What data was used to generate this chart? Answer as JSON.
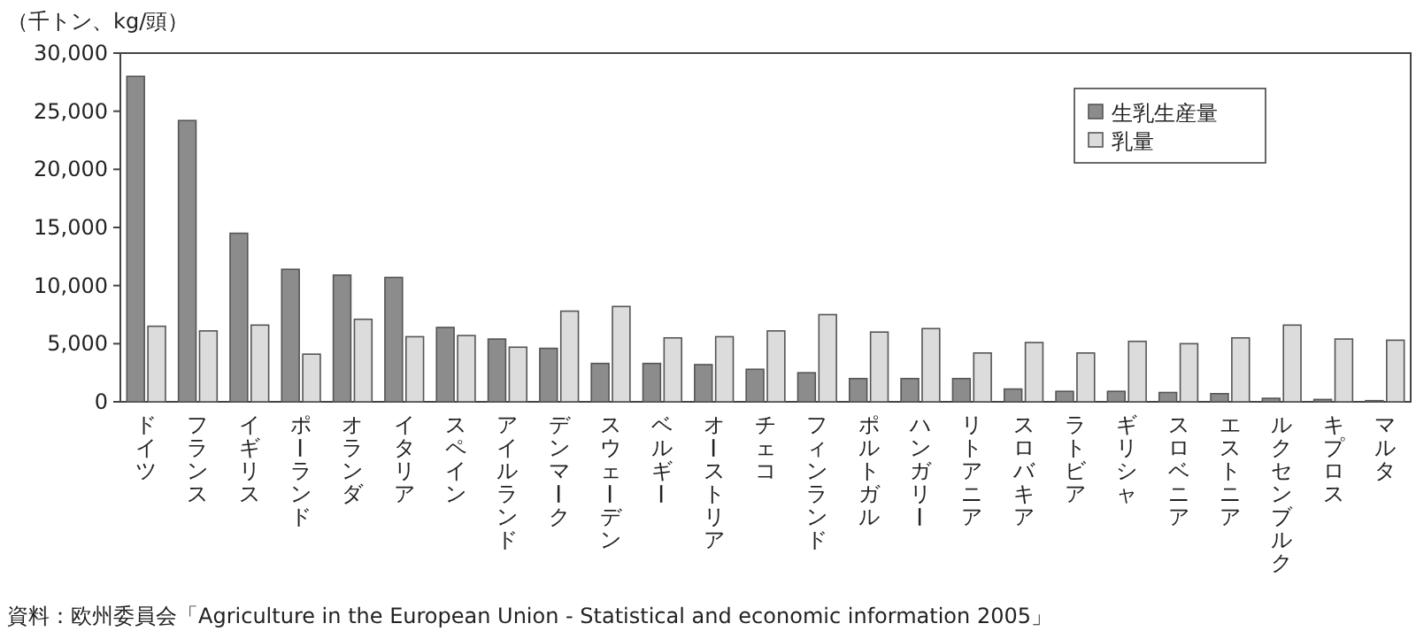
{
  "chart_data": {
    "type": "bar",
    "ylabel": "（千トン、kg/頭）",
    "categories": [
      "ドイツ",
      "フランス",
      "イギリス",
      "ポーランド",
      "オランダ",
      "イタリア",
      "スペイン",
      "アイルランド",
      "デンマーク",
      "スウェーデン",
      "ベルギー",
      "オーストリア",
      "チェコ",
      "フィンランド",
      "ポルトガル",
      "ハンガリー",
      "リトアニア",
      "スロバキア",
      "ラトビア",
      "ギリシャ",
      "スロベニア",
      "エストニア",
      "ルクセンブルク",
      "キプロス",
      "マルタ"
    ],
    "series": [
      {
        "name": "生乳生産量",
        "color": "#8c8c8c",
        "values": [
          28000,
          24200,
          14500,
          11400,
          10900,
          10700,
          6400,
          5400,
          4600,
          3300,
          3300,
          3200,
          2800,
          2500,
          2000,
          2000,
          2000,
          1100,
          900,
          900,
          800,
          700,
          300,
          200,
          100
        ]
      },
      {
        "name": "乳量",
        "color": "#dcdcdc",
        "values": [
          6500,
          6100,
          6600,
          4100,
          7100,
          5600,
          5700,
          4700,
          7800,
          8200,
          5500,
          5600,
          6100,
          7500,
          6000,
          6300,
          4200,
          5100,
          4200,
          5200,
          5000,
          5500,
          6600,
          5400,
          5300
        ]
      }
    ],
    "ylim": [
      0,
      30000
    ],
    "yticks": [
      {
        "value": 0,
        "label": "0"
      },
      {
        "value": 5000,
        "label": "5,000"
      },
      {
        "value": 10000,
        "label": "10,000"
      },
      {
        "value": 15000,
        "label": "15,000"
      },
      {
        "value": 20000,
        "label": "20,000"
      },
      {
        "value": 25000,
        "label": "25,000"
      },
      {
        "value": 30000,
        "label": "30,000"
      }
    ],
    "legend": "top right",
    "annotations": [
      "資料：欧州委員会「Agriculture in the European Union - Statistical and economic information 2005」"
    ]
  }
}
